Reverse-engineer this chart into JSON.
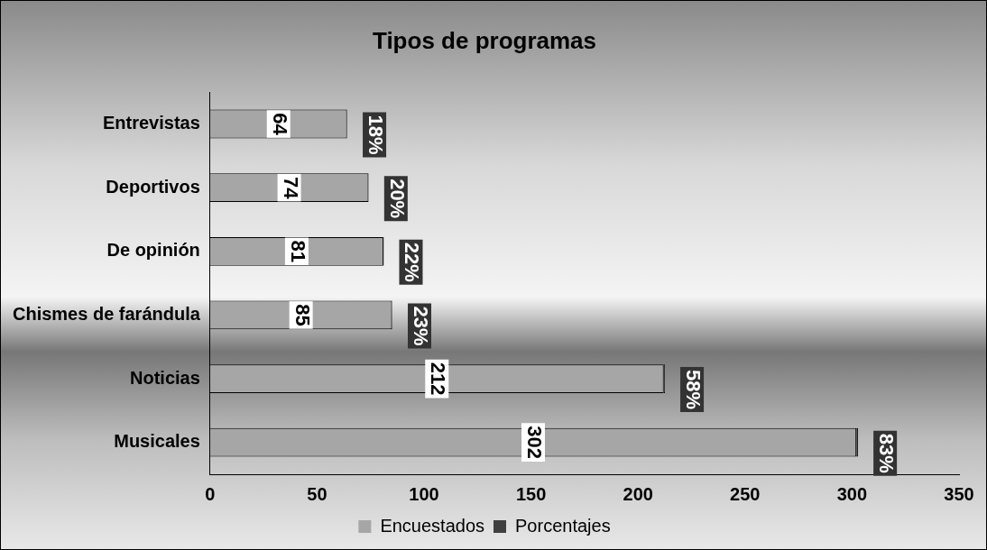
{
  "chart_data": {
    "type": "bar",
    "orientation": "horizontal",
    "stacked": true,
    "title": "Tipos de programas",
    "categories": [
      "Entrevistas",
      "Deportivos",
      "De opinión",
      "Chismes de farándula",
      "Noticias",
      "Musicales"
    ],
    "series": [
      {
        "name": "Encuestados",
        "color": "#a6a6a6",
        "values": [
          64,
          74,
          81,
          85,
          212,
          302
        ],
        "value_labels": [
          "64",
          "74",
          "81",
          "85",
          "212",
          "302"
        ]
      },
      {
        "name": "Porcentajes",
        "color": "#404040",
        "values": [
          0.18,
          0.2,
          0.22,
          0.23,
          0.58,
          0.83
        ],
        "value_labels": [
          "18%",
          "20%",
          "22%",
          "23%",
          "58%",
          "83%"
        ]
      }
    ],
    "xlim": [
      0,
      350
    ],
    "xticks": [
      0,
      50,
      100,
      150,
      200,
      250,
      300,
      350
    ],
    "grid": false,
    "legend": "bottom"
  }
}
